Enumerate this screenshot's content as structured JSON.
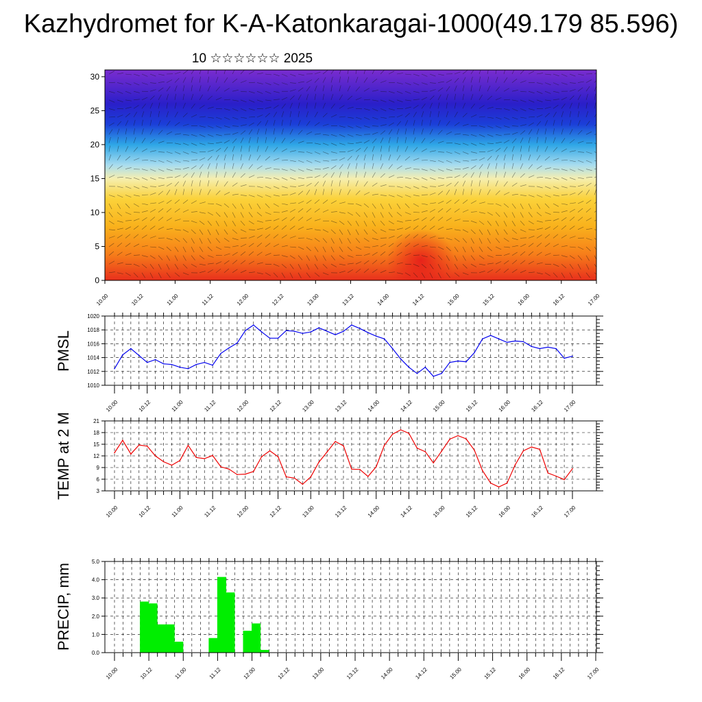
{
  "header": {
    "title": "Kazhydromet for K-A-Katonkaragai-1000(49.179 85.596)",
    "subtitle": "10 ☆☆☆☆☆☆ 2025"
  },
  "time_ticks": [
    "10.00",
    "10.12",
    "11.00",
    "11.12",
    "12.00",
    "12.12",
    "13.00",
    "13.12",
    "14.00",
    "14.12",
    "15.00",
    "15.12",
    "16.00",
    "16.12",
    "17.00"
  ],
  "chart_data": [
    {
      "type": "heatmap",
      "name": "wind-cross-section",
      "x_range": [
        0,
        168
      ],
      "ylim": [
        0,
        31
      ],
      "yticks": [
        0,
        5,
        10,
        15,
        20,
        25,
        30
      ],
      "xticklabels": [
        "10.00",
        "10.12",
        "11.00",
        "11.12",
        "12.00",
        "12.12",
        "13.00",
        "13.12",
        "14.00",
        "14.12",
        "15.00",
        "15.12",
        "16.00",
        "16.12",
        "17.00"
      ],
      "color_levels": [
        {
          "level": 0,
          "color": "#e8301c"
        },
        {
          "level": 4,
          "color": "#f7801a"
        },
        {
          "level": 8,
          "color": "#f9b21c"
        },
        {
          "level": 12,
          "color": "#fbd23a"
        },
        {
          "level": 15,
          "color": "#f5efb0"
        },
        {
          "level": 17,
          "color": "#a8dcef"
        },
        {
          "level": 20,
          "color": "#2ea6e6"
        },
        {
          "level": 23,
          "color": "#1b3fd8"
        },
        {
          "level": 26,
          "color": "#2a1fc9"
        },
        {
          "level": 31,
          "color": "#7a2ccf"
        }
      ],
      "grid": false
    },
    {
      "type": "line",
      "ylabel": "PMSL",
      "ylim": [
        1010,
        1020
      ],
      "yticks": [
        1010,
        1012,
        1014,
        1016,
        1018,
        1020
      ],
      "x_hours_start": 0,
      "x_hours_step": 3,
      "xticklabels": [
        "10.00",
        "10.12",
        "11.00",
        "11.12",
        "12.00",
        "12.12",
        "13.00",
        "13.12",
        "14.00",
        "14.12",
        "15.00",
        "15.12",
        "16.00",
        "16.12",
        "17.00"
      ],
      "color": "#0000ee",
      "values": [
        1012.4,
        1014.4,
        1015.3,
        1014.3,
        1013.3,
        1013.7,
        1013.1,
        1013.0,
        1012.6,
        1012.4,
        1013.0,
        1013.3,
        1012.9,
        1014.6,
        1015.4,
        1016.1,
        1017.9,
        1018.7,
        1017.7,
        1016.8,
        1016.8,
        1017.9,
        1017.8,
        1017.5,
        1017.7,
        1018.3,
        1017.8,
        1017.3,
        1017.8,
        1018.7,
        1018.2,
        1017.6,
        1017.1,
        1016.7,
        1015.3,
        1013.8,
        1012.6,
        1011.7,
        1012.6,
        1011.3,
        1011.7,
        1013.3,
        1013.5,
        1013.4,
        1014.7,
        1016.7,
        1017.2,
        1016.7,
        1016.2,
        1016.4,
        1016.3,
        1015.6,
        1015.3,
        1015.5,
        1015.3,
        1013.9,
        1014.2
      ],
      "grid": true
    },
    {
      "type": "line",
      "ylabel": "TEMP at 2 M",
      "ylim": [
        3,
        21
      ],
      "yticks": [
        3,
        6,
        9,
        12,
        15,
        18,
        21
      ],
      "x_hours_start": 0,
      "x_hours_step": 3,
      "xticklabels": [
        "10.00",
        "10.12",
        "11.00",
        "11.12",
        "12.00",
        "12.12",
        "13.00",
        "13.12",
        "14.00",
        "14.12",
        "15.00",
        "15.12",
        "16.00",
        "16.12",
        "17.00"
      ],
      "color": "#ee0000",
      "values": [
        12.8,
        16.0,
        12.5,
        14.8,
        14.5,
        12.0,
        10.5,
        9.6,
        10.8,
        14.7,
        11.6,
        11.3,
        12.1,
        9.2,
        8.6,
        7.2,
        7.3,
        8.0,
        11.8,
        13.3,
        11.8,
        6.6,
        6.3,
        4.7,
        6.6,
        10.4,
        13.0,
        15.7,
        14.6,
        8.6,
        8.5,
        6.7,
        9.2,
        14.7,
        17.6,
        18.7,
        17.8,
        14.0,
        13.1,
        10.2,
        13.2,
        16.3,
        17.2,
        16.4,
        13.5,
        8.2,
        5.0,
        4.0,
        5.0,
        9.7,
        13.3,
        14.3,
        13.7,
        7.6,
        6.8,
        5.9,
        8.7
      ],
      "grid": true
    },
    {
      "type": "bar",
      "ylabel": "PRECIP, mm",
      "ylim": [
        0,
        5
      ],
      "yticks": [
        "0.0",
        "1.0",
        "2.0",
        "3.0",
        "4.0",
        "5.0"
      ],
      "x_hours_start": 0,
      "x_hours_step": 3,
      "xticklabels": [
        "10.00",
        "10.12",
        "11.00",
        "11.12",
        "12.00",
        "12.12",
        "13.00",
        "13.12",
        "14.00",
        "14.12",
        "15.00",
        "15.12",
        "16.00",
        "16.12",
        "17.00"
      ],
      "color": "#00ee00",
      "values": [
        0,
        0,
        0,
        2.8,
        2.7,
        1.55,
        1.55,
        0.6,
        0,
        0,
        0,
        0.8,
        4.15,
        3.3,
        0,
        1.2,
        1.6,
        0.15,
        0,
        0,
        0,
        0,
        0,
        0,
        0,
        0,
        0,
        0,
        0,
        0,
        0,
        0,
        0,
        0,
        0,
        0,
        0,
        0,
        0,
        0,
        0,
        0,
        0,
        0,
        0,
        0,
        0,
        0,
        0,
        0,
        0,
        0,
        0,
        0,
        0,
        0
      ],
      "grid": true
    }
  ]
}
